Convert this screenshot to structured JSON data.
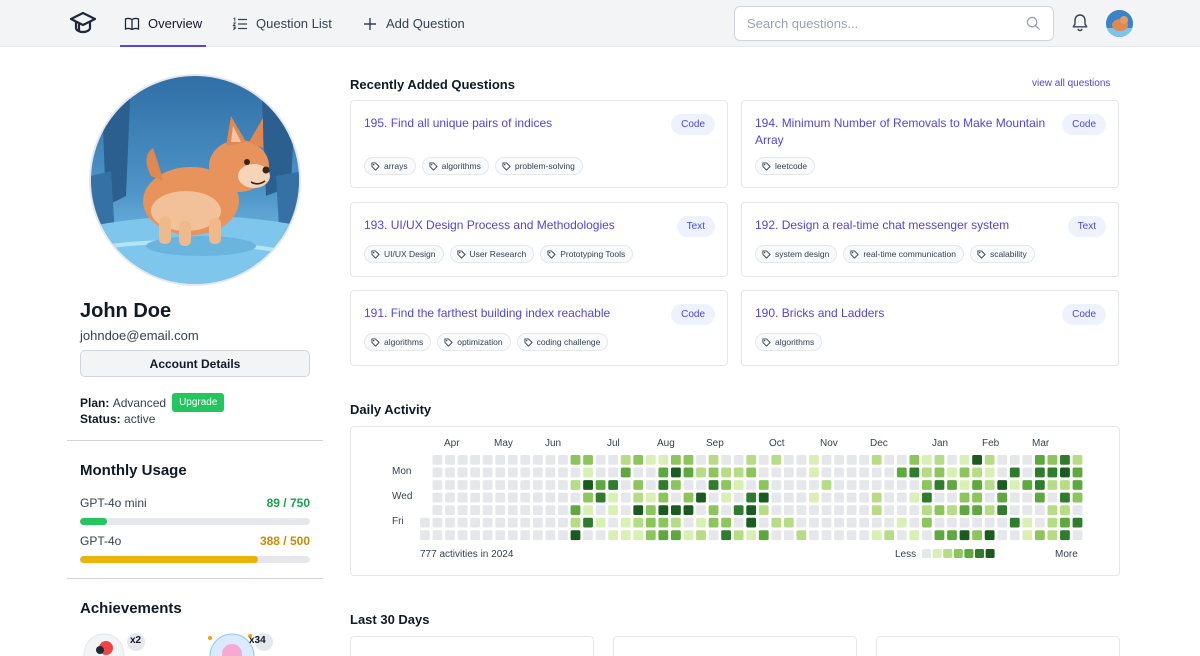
{
  "nav": {
    "overview": "Overview",
    "question_list": "Question List",
    "add_question": "Add Question",
    "search_placeholder": "Search questions..."
  },
  "profile": {
    "name": "John Doe",
    "email": "johndoe@email.com",
    "account_details": "Account Details",
    "plan_label": "Plan:",
    "plan_value": "Advanced",
    "upgrade": "Upgrade",
    "status_label": "Status:",
    "status_value": "active"
  },
  "usage": {
    "title": "Monthly Usage",
    "items": [
      {
        "label": "GPT-4o mini",
        "value": "89 / 750",
        "used": 89,
        "limit": 750,
        "color": "#22c55e"
      },
      {
        "label": "GPT-4o",
        "value": "388 / 500",
        "used": 388,
        "limit": 500,
        "color": "#eab308"
      }
    ]
  },
  "achievements": {
    "title": "Achievements",
    "items": [
      {
        "icon": "chicken-badge-icon",
        "count": "x2"
      },
      {
        "icon": "piggy-badge-icon",
        "count": "x34"
      }
    ]
  },
  "recent": {
    "title": "Recently Added Questions",
    "view_all": "view all questions",
    "questions": [
      {
        "title": "195. Find all unique pairs of indices",
        "type": "Code",
        "tags": [
          "arrays",
          "algorithms",
          "problem-solving"
        ]
      },
      {
        "title": "194. Minimum Number of Removals to Make Mountain Array",
        "type": "Code",
        "tags": [
          "leetcode"
        ]
      },
      {
        "title": "193. UI/UX Design Process and Methodologies",
        "type": "Text",
        "tags": [
          "UI/UX Design",
          "User Research",
          "Prototyping Tools"
        ]
      },
      {
        "title": "192. Design a real-time chat messenger system",
        "type": "Text",
        "tags": [
          "system design",
          "real-time communication",
          "scalability"
        ]
      },
      {
        "title": "191. Find the farthest building index reachable",
        "type": "Code",
        "tags": [
          "algorithms",
          "optimization",
          "coding challenge"
        ]
      },
      {
        "title": "190. Bricks and Ladders",
        "type": "Code",
        "tags": [
          "algorithms"
        ]
      }
    ]
  },
  "activity": {
    "title": "Daily Activity",
    "months": [
      "Apr",
      "May",
      "Jun",
      "Jul",
      "Aug",
      "Sep",
      "Oct",
      "Nov",
      "Dec",
      "Jan",
      "Feb",
      "Mar"
    ],
    "days": [
      "Mon",
      "Wed",
      "Fri"
    ],
    "summary": "777 activities in 2024",
    "less": "Less",
    "more": "More",
    "colors": [
      "#e5e7eb",
      "#d9f0b5",
      "#b6dd85",
      "#8cc65b",
      "#5ea93e",
      "#2f7d2c",
      "#1a5c1f"
    ]
  },
  "last30": {
    "title": "Last 30 Days"
  }
}
